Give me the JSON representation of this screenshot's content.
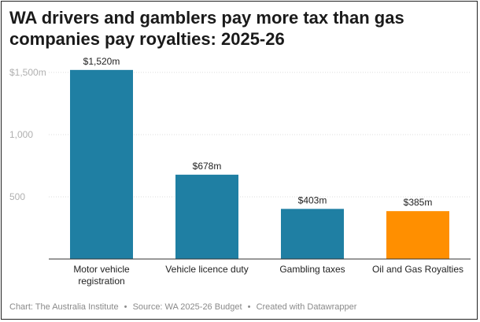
{
  "title": "WA drivers and gamblers pay more tax than gas companies pay royalties: 2025-26",
  "footer": {
    "chart_credit": "Chart: The Australia Institute",
    "source": "Source: WA 2025-26 Budget",
    "tool": "Created with Datawrapper",
    "separator": "•"
  },
  "colors": {
    "primary_bar": "#1f7fa3",
    "highlight_bar": "#ff8f00",
    "grid": "#dcdcdc",
    "axis": "#333333"
  },
  "chart_data": {
    "type": "bar",
    "title": "WA drivers and gamblers pay more tax than gas companies pay royalties: 2025-26",
    "xlabel": "",
    "ylabel": "",
    "categories": [
      [
        "Motor vehicle",
        "registration"
      ],
      [
        "Vehicle licence duty"
      ],
      [
        "Gambling taxes"
      ],
      [
        "Oil and Gas Royalties"
      ]
    ],
    "values": [
      1520,
      678,
      403,
      385
    ],
    "value_labels": [
      "$1,520m",
      "$678m",
      "$403m",
      "$385m"
    ],
    "bar_colors": [
      "#1f7fa3",
      "#1f7fa3",
      "#1f7fa3",
      "#ff8f00"
    ],
    "ylim": [
      0,
      1650
    ],
    "yticks": [
      {
        "value": 500,
        "label": "500"
      },
      {
        "value": 1000,
        "label": "1,000"
      },
      {
        "value": 1500,
        "label": "$1,500m"
      }
    ],
    "grid": true,
    "legend": "none"
  }
}
